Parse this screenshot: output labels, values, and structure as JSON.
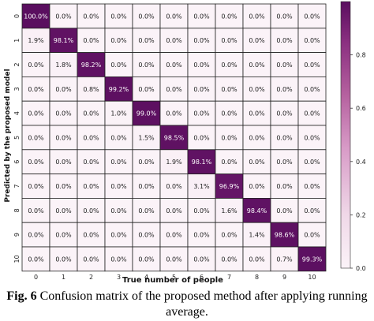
{
  "chart_data": {
    "type": "heatmap",
    "xlabel": "True number of people",
    "ylabel": "Predicted by the proposed model",
    "x_categories": [
      "0",
      "1",
      "2",
      "3",
      "4",
      "5",
      "6",
      "7",
      "8",
      "9",
      "10"
    ],
    "y_categories": [
      "0",
      "1",
      "2",
      "3",
      "4",
      "5",
      "6",
      "7",
      "8",
      "9",
      "10"
    ],
    "values": [
      [
        100.0,
        0.0,
        0.0,
        0.0,
        0.0,
        0.0,
        0.0,
        0.0,
        0.0,
        0.0,
        0.0
      ],
      [
        1.9,
        98.1,
        0.0,
        0.0,
        0.0,
        0.0,
        0.0,
        0.0,
        0.0,
        0.0,
        0.0
      ],
      [
        0.0,
        1.8,
        98.2,
        0.0,
        0.0,
        0.0,
        0.0,
        0.0,
        0.0,
        0.0,
        0.0
      ],
      [
        0.0,
        0.0,
        0.8,
        99.2,
        0.0,
        0.0,
        0.0,
        0.0,
        0.0,
        0.0,
        0.0
      ],
      [
        0.0,
        0.0,
        0.0,
        1.0,
        99.0,
        0.0,
        0.0,
        0.0,
        0.0,
        0.0,
        0.0
      ],
      [
        0.0,
        0.0,
        0.0,
        0.0,
        1.5,
        98.5,
        0.0,
        0.0,
        0.0,
        0.0,
        0.0
      ],
      [
        0.0,
        0.0,
        0.0,
        0.0,
        0.0,
        1.9,
        98.1,
        0.0,
        0.0,
        0.0,
        0.0
      ],
      [
        0.0,
        0.0,
        0.0,
        0.0,
        0.0,
        0.0,
        3.1,
        96.9,
        0.0,
        0.0,
        0.0
      ],
      [
        0.0,
        0.0,
        0.0,
        0.0,
        0.0,
        0.0,
        0.0,
        1.6,
        98.4,
        0.0,
        0.0
      ],
      [
        0.0,
        0.0,
        0.0,
        0.0,
        0.0,
        0.0,
        0.0,
        0.0,
        1.4,
        98.6,
        0.0
      ],
      [
        0.0,
        0.0,
        0.0,
        0.0,
        0.0,
        0.0,
        0.0,
        0.0,
        0.0,
        0.7,
        99.3
      ]
    ],
    "value_format": "percent_1dp",
    "colorbar": {
      "range": [
        0.0,
        1.0
      ],
      "ticks": [
        "0.0",
        "0.2",
        "0.4",
        "0.6",
        "0.8"
      ],
      "tick_values": [
        0.0,
        0.2,
        0.4,
        0.6,
        0.8
      ],
      "colors": [
        "#fbf3f8",
        "#f0d8e8",
        "#d89bc7",
        "#b5619f",
        "#8a2f80",
        "#5a0e5f"
      ]
    },
    "grid": true
  },
  "caption": {
    "label": "Fig. 6",
    "text": " Confusion matrix of the proposed method after applying running",
    "text_line2": "average."
  }
}
